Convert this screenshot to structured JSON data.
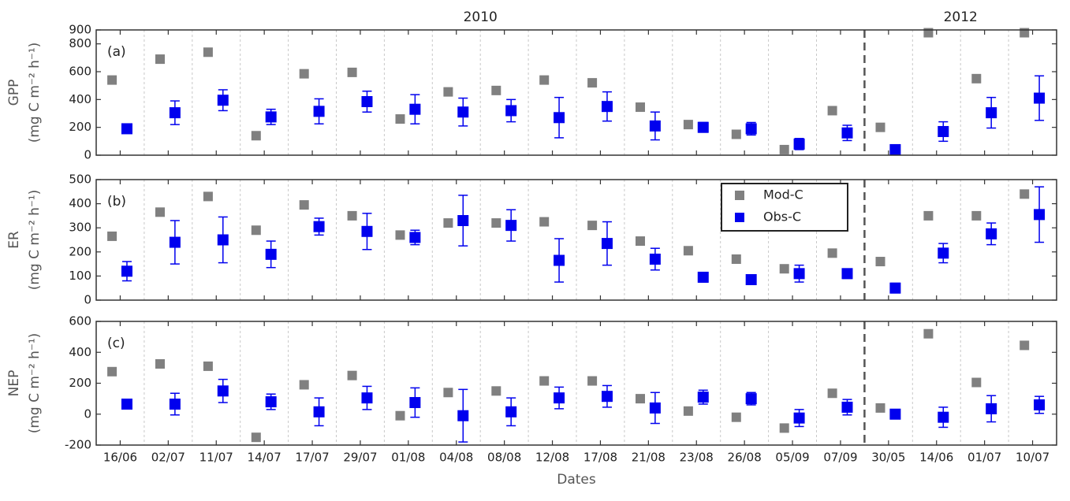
{
  "chart_data": [
    {
      "type": "scatter",
      "panel_label": "(a)",
      "ylabel": "GPP",
      "ylabel_unit": "(mg C m⁻² h⁻¹)",
      "annotations": [
        "2010",
        "2012"
      ],
      "ylim": [
        0,
        900
      ],
      "yticks": [
        0,
        200,
        400,
        600,
        800,
        900
      ],
      "series": [
        {
          "color": "#808080",
          "values": [
            540,
            690,
            740,
            140,
            585,
            595,
            260,
            455,
            465,
            540,
            520,
            345,
            220,
            150,
            40,
            320,
            200,
            880,
            550,
            880
          ]
        },
        {
          "color": "#0000ee",
          "values": [
            190,
            305,
            395,
            275,
            315,
            385,
            330,
            310,
            320,
            270,
            350,
            210,
            200,
            190,
            80,
            160,
            40,
            170,
            305,
            410
          ],
          "errors": [
            30,
            85,
            75,
            55,
            90,
            75,
            105,
            100,
            80,
            145,
            105,
            100,
            35,
            45,
            40,
            55,
            20,
            70,
            110,
            160
          ]
        }
      ]
    },
    {
      "type": "scatter",
      "panel_label": "(b)",
      "ylabel": "ER",
      "ylabel_unit": "(mg C m⁻² h⁻¹)",
      "ylim": [
        0,
        500
      ],
      "yticks": [
        0,
        100,
        200,
        300,
        400,
        500
      ],
      "series": [
        {
          "name": "Mod-C",
          "color": "#808080",
          "values": [
            265,
            365,
            430,
            290,
            395,
            350,
            270,
            320,
            320,
            325,
            310,
            245,
            205,
            170,
            130,
            195,
            160,
            350,
            350,
            440
          ]
        },
        {
          "name": "Obs-C",
          "color": "#0000ee",
          "values": [
            120,
            240,
            250,
            190,
            305,
            285,
            260,
            330,
            310,
            165,
            235,
            170,
            95,
            85,
            110,
            110,
            50,
            195,
            275,
            355
          ],
          "errors": [
            40,
            90,
            95,
            55,
            35,
            75,
            30,
            105,
            65,
            90,
            90,
            45,
            20,
            20,
            35,
            20,
            20,
            40,
            45,
            115
          ]
        }
      ]
    },
    {
      "type": "scatter",
      "panel_label": "(c)",
      "ylabel": "NEP",
      "ylabel_unit": "(mg C m⁻² h⁻¹)",
      "xlabel": "Dates",
      "categories": [
        "16/06",
        "02/07",
        "11/07",
        "14/07",
        "17/07",
        "29/07",
        "01/08",
        "04/08",
        "08/08",
        "12/08",
        "17/08",
        "21/08",
        "23/08",
        "26/08",
        "05/09",
        "07/09",
        "30/05",
        "14/06",
        "01/07",
        "10/07"
      ],
      "ylim": [
        -200,
        600
      ],
      "yticks": [
        -200,
        0,
        200,
        400,
        600
      ],
      "series": [
        {
          "color": "#808080",
          "values": [
            275,
            325,
            310,
            -150,
            190,
            250,
            -10,
            140,
            150,
            215,
            215,
            100,
            20,
            -20,
            -90,
            135,
            40,
            520,
            205,
            445
          ]
        },
        {
          "color": "#0000ee",
          "values": [
            65,
            65,
            150,
            80,
            15,
            105,
            75,
            -10,
            15,
            105,
            115,
            40,
            110,
            100,
            -25,
            45,
            0,
            -20,
            35,
            60
          ],
          "errors": [
            25,
            70,
            75,
            50,
            90,
            75,
            95,
            170,
            90,
            70,
            70,
            100,
            45,
            40,
            55,
            50,
            15,
            65,
            85,
            55
          ]
        }
      ]
    }
  ]
}
